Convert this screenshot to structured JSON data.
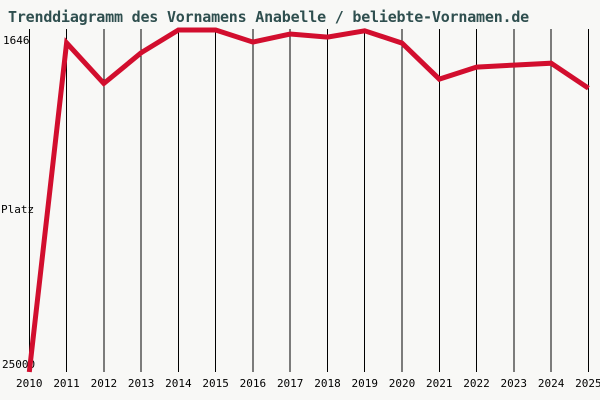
{
  "title": "Trenddiagramm des Vornamens Anabelle / beliebte-Vornamen.de",
  "y_axis": {
    "top_label": "1646",
    "middle_label": "Platz",
    "bottom_label": "25000"
  },
  "colors": {
    "line": "#d20e2e",
    "title": "#2f4f4f",
    "grid": "#000000",
    "background": "#f8f8f6",
    "label": "#000000"
  },
  "chart_data": {
    "type": "line",
    "title": "Trenddiagramm des Vornamens Anabelle / beliebte-Vornamen.de",
    "x": [
      "2010",
      "2011",
      "2012",
      "2013",
      "2014",
      "2015",
      "2016",
      "2017",
      "2018",
      "2019",
      "2020",
      "2021",
      "2022",
      "2023",
      "2024",
      "2025"
    ],
    "series": [
      {
        "name": "Anabelle",
        "values": [
          25000,
          2530,
          5300,
          3200,
          1646,
          1646,
          2470,
          1920,
          2130,
          1700,
          2540,
          5000,
          4180,
          4040,
          3910,
          5620
        ]
      }
    ],
    "xlabel": "",
    "ylabel": "Platz",
    "ylim": [
      1646,
      25000
    ],
    "y_axis_inverted": true,
    "grid": "vertical-only",
    "legend": "none"
  }
}
